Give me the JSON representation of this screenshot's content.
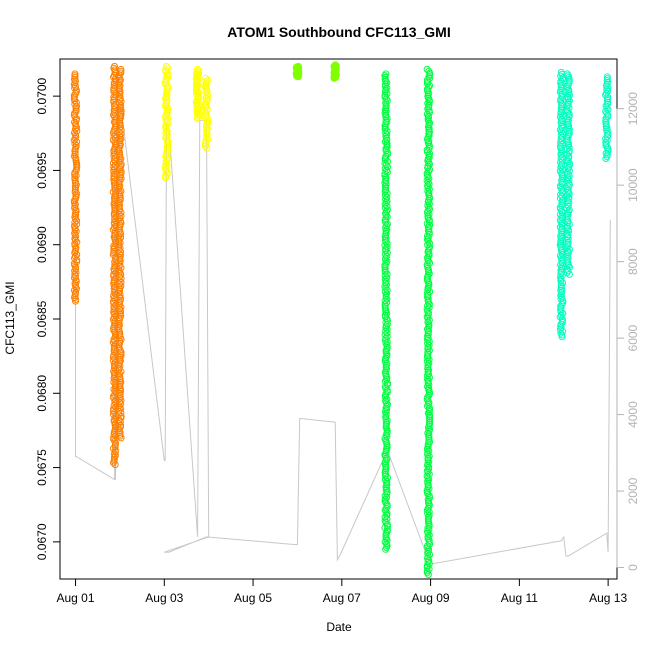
{
  "chart_data": {
    "type": "scatter",
    "title": "ATOM1 Southbound CFC113_GMI",
    "xlabel": "Date",
    "ylabel": "CFC113_GMI",
    "xlim": [
      -0.35,
      12.2
    ],
    "ylim": [
      0.06675,
      0.07025
    ],
    "x_ticks": [
      0,
      2,
      4,
      6,
      8,
      10,
      12
    ],
    "x_tick_labels": [
      "Aug 01",
      "Aug 03",
      "Aug 05",
      "Aug 07",
      "Aug 09",
      "Aug 11",
      "Aug 13"
    ],
    "y_ticks": [
      0.067,
      0.0675,
      0.068,
      0.0685,
      0.069,
      0.0695,
      0.07
    ],
    "y_tick_labels": [
      "0.0670",
      "0.0675",
      "0.0680",
      "0.0685",
      "0.0690",
      "0.0695",
      "0.0700"
    ],
    "y2lim": [
      -300,
      13300
    ],
    "y2_ticks": [
      0,
      2000,
      4000,
      6000,
      8000,
      10000,
      12000
    ],
    "y2_tick_labels": [
      "0",
      "2000",
      "4000",
      "6000",
      "8000",
      "10000",
      "12000"
    ],
    "series": [
      {
        "color": "#ff8000",
        "x": 0.0,
        "y_min": 0.06862,
        "y_max": 0.07015
      },
      {
        "color": "#ff8000",
        "x": 0.88,
        "y_min": 0.06752,
        "y_max": 0.0702
      },
      {
        "color": "#ff8000",
        "x": 1.0,
        "y_min": 0.0677,
        "y_max": 0.07018
      },
      {
        "color": "#ffff00",
        "x": 2.05,
        "y_min": 0.06945,
        "y_max": 0.0702
      },
      {
        "color": "#ffff00",
        "x": 2.75,
        "y_min": 0.06985,
        "y_max": 0.07018
      },
      {
        "color": "#ffff00",
        "x": 2.95,
        "y_min": 0.06965,
        "y_max": 0.07012
      },
      {
        "color": "#80ff00",
        "x": 5.0,
        "y_min": 0.07013,
        "y_max": 0.0702
      },
      {
        "color": "#80ff00",
        "x": 5.85,
        "y_min": 0.07012,
        "y_max": 0.07021
      },
      {
        "color": "#00ff40",
        "x": 7.0,
        "y_min": 0.06695,
        "y_max": 0.07015
      },
      {
        "color": "#00ff40",
        "x": 7.95,
        "y_min": 0.06678,
        "y_max": 0.07018
      },
      {
        "color": "#00ffbf",
        "x": 10.95,
        "y_min": 0.06838,
        "y_max": 0.07016
      },
      {
        "color": "#00ffbf",
        "x": 11.1,
        "y_min": 0.0688,
        "y_max": 0.07015
      },
      {
        "color": "#00ffbf",
        "x": 11.97,
        "y_min": 0.06958,
        "y_max": 0.07013
      }
    ],
    "altitude_trace": {
      "color": "#c8c8c8",
      "x": [
        0.0,
        0.0,
        0.02,
        0.88,
        0.88,
        0.9,
        1.0,
        1.02,
        2.0,
        2.02,
        2.05,
        2.1,
        2.75,
        2.8,
        2.95,
        3.0,
        2.0,
        2.1,
        2.95,
        4.95,
        5.0,
        5.05,
        5.85,
        5.9,
        5.95,
        7.0,
        7.05,
        7.95,
        8.0,
        8.05,
        10.95,
        11.0,
        11.05,
        11.1,
        11.97,
        12.0,
        12.05
      ],
      "y": [
        11500,
        2900,
        2900,
        2300,
        11500,
        2300,
        12100,
        12100,
        2800,
        2800,
        11600,
        11600,
        800,
        11700,
        11700,
        800,
        400,
        400,
        800,
        600,
        600,
        3900,
        3800,
        200,
        300,
        3000,
        3000,
        200,
        200,
        100,
        700,
        800,
        300,
        300,
        900,
        400,
        9100
      ]
    }
  }
}
